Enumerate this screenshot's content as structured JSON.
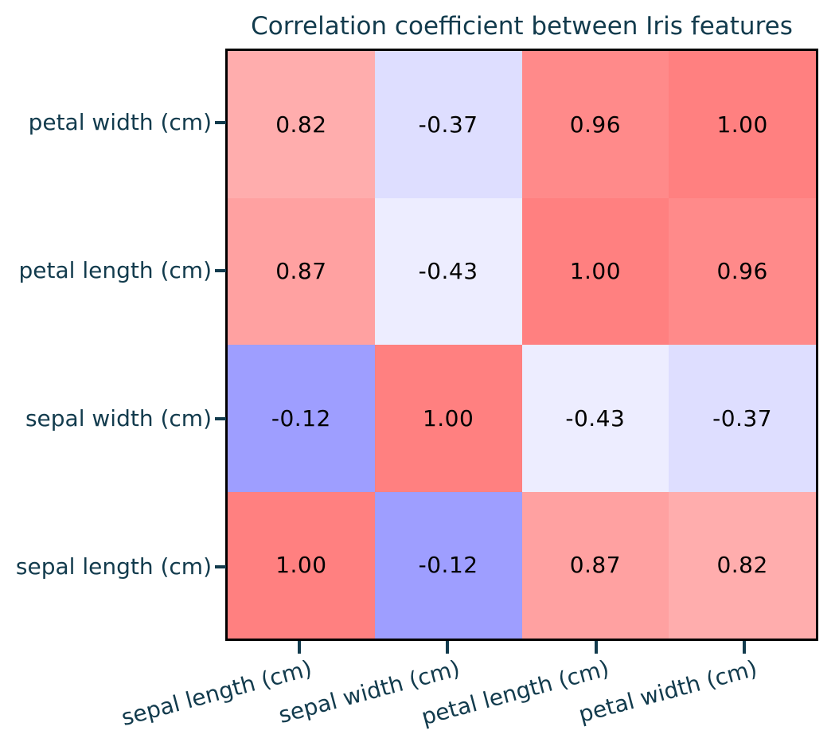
{
  "figure": {
    "title": "Correlation coefficient between Iris features"
  },
  "colors": {
    "background": "#FFFFFF",
    "title_text": "#123B4D",
    "axis_tick_text": "#123B4D",
    "tick_mark": "#123B4D",
    "plot_border": "#000000",
    "cell_value_text": "#000000"
  },
  "chart_data": {
    "type": "heatmap",
    "title": "Correlation coefficient between Iris features",
    "x_categories": [
      "sepal length (cm)",
      "sepal width (cm)",
      "petal length (cm)",
      "petal width (cm)"
    ],
    "y_categories": [
      "petal width (cm)",
      "petal length (cm)",
      "sepal width (cm)",
      "sepal length (cm)"
    ],
    "x_tick_rotation_deg": 15,
    "values": [
      [
        0.82,
        -0.37,
        0.96,
        1.0
      ],
      [
        0.87,
        -0.43,
        1.0,
        0.96
      ],
      [
        -0.12,
        1.0,
        -0.43,
        -0.37
      ],
      [
        1.0,
        -0.12,
        0.87,
        0.82
      ]
    ],
    "value_labels": [
      [
        "0.82",
        "-0.37",
        "0.96",
        "1.00"
      ],
      [
        "0.87",
        "-0.43",
        "1.00",
        "0.96"
      ],
      [
        "-0.12",
        "1.00",
        "-0.43",
        "-0.37"
      ],
      [
        "1.00",
        "-0.12",
        "0.87",
        "0.82"
      ]
    ],
    "cell_colors": [
      [
        "#FFADAD",
        "#DEDEFF",
        "#FF8A8A",
        "#FF8080"
      ],
      [
        "#FFA1A1",
        "#EDEDFF",
        "#FF8080",
        "#FF8A8A"
      ],
      [
        "#9E9EFF",
        "#FF8080",
        "#EDEDFF",
        "#DEDEFF"
      ],
      [
        "#FF8080",
        "#9E9EFF",
        "#FFA1A1",
        "#FFADAD"
      ]
    ],
    "colormap_note": "bwr colormap applied to |value|, ~50% alpha over white",
    "value_range": [
      -1,
      1
    ],
    "grid": false,
    "legend": "none"
  }
}
